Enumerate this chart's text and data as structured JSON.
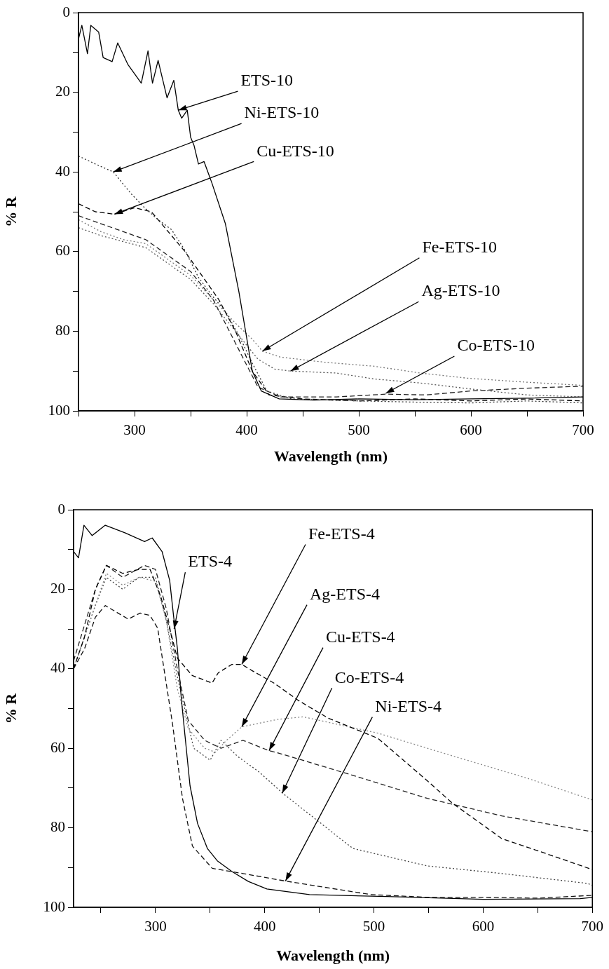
{
  "chart_data": [
    {
      "type": "line",
      "xlabel": "Wavelength (nm)",
      "ylabel": "% R",
      "xlim": [
        250,
        700
      ],
      "ylim": [
        100,
        0
      ],
      "xticks": [
        {
          "value": 250,
          "label": null
        },
        300,
        {
          "value": 350,
          "label": null
        },
        400,
        {
          "value": 450,
          "label": null
        },
        500,
        {
          "value": 550,
          "label": null
        },
        600,
        {
          "value": 650,
          "label": null
        },
        700
      ],
      "yticks": [
        0,
        {
          "value": 10,
          "label": null
        },
        20,
        {
          "value": 30,
          "label": null
        },
        40,
        {
          "value": 50,
          "label": null
        },
        60,
        {
          "value": 70,
          "label": null
        },
        80,
        {
          "value": 90,
          "label": null
        },
        100
      ],
      "grid": false,
      "legend": false,
      "marker": "none",
      "series": [
        {
          "color": "#000000",
          "line_style": "solid",
          "x": [
            250,
            253,
            258,
            261,
            268,
            272,
            280,
            285,
            294,
            306,
            312,
            316,
            321,
            329,
            335,
            339,
            342,
            347,
            350,
            353,
            357,
            362,
            369,
            381,
            393,
            405,
            413,
            429,
            460,
            500,
            550,
            600,
            650,
            700
          ],
          "values": [
            6.6,
            3.2,
            10.3,
            3.2,
            4.9,
            11.3,
            12.3,
            7.6,
            13,
            17.7,
            9.6,
            17.7,
            12,
            21.4,
            17,
            24.5,
            26.5,
            24.5,
            31.3,
            33.3,
            38,
            37.4,
            42.8,
            53,
            70,
            90,
            95,
            97,
            97.3,
            97,
            97.2,
            97,
            96.8,
            96.5
          ]
        },
        {
          "color": "#333333",
          "line_style": "dotted",
          "x": [
            250,
            265,
            281,
            297,
            309,
            321,
            333,
            345,
            357,
            369,
            381,
            393,
            405,
            418,
            440,
            500,
            550,
            600,
            650,
            700
          ],
          "values": [
            36,
            38,
            40,
            45.5,
            49,
            52,
            54.5,
            59.7,
            66.5,
            71,
            75,
            81,
            88,
            95,
            97,
            97.5,
            97.8,
            98,
            97.5,
            98
          ]
        },
        {
          "color": "#000000",
          "line_style": "dashed",
          "x": [
            250,
            265,
            282,
            300,
            315,
            330,
            345,
            360,
            375,
            390,
            405,
            420,
            450,
            500,
            550,
            600,
            650,
            700
          ],
          "values": [
            48,
            50,
            50.6,
            49,
            50,
            55,
            60,
            66,
            72,
            80,
            90,
            96,
            97,
            97.5,
            97,
            97.5,
            97,
            97.5
          ]
        },
        {
          "color": "#777777",
          "line_style": "dotted",
          "x": [
            250,
            270,
            290,
            310,
            330,
            350,
            370,
            390,
            405,
            414,
            430,
            470,
            514,
            555,
            597,
            650,
            700
          ],
          "values": [
            52,
            55,
            57,
            58,
            62,
            66,
            72,
            78,
            82,
            85,
            86.5,
            87.8,
            88.8,
            90.5,
            91.8,
            92.8,
            93.6
          ]
        },
        {
          "color": "#555555",
          "line_style": "dotted",
          "x": [
            250,
            270,
            290,
            310,
            330,
            350,
            370,
            390,
            410,
            425,
            439,
            480,
            514,
            555,
            600,
            650,
            700
          ],
          "values": [
            54,
            56,
            57.5,
            59,
            63,
            67,
            73,
            80,
            87,
            89.5,
            90,
            90.5,
            92,
            93,
            94.5,
            96,
            96.5
          ]
        },
        {
          "color": "#222222",
          "line_style": "dashed",
          "x": [
            250,
            270,
            290,
            310,
            330,
            350,
            370,
            390,
            410,
            430,
            480,
            524,
            560,
            600,
            650,
            700
          ],
          "values": [
            51,
            53,
            55,
            57,
            61,
            65,
            72,
            83,
            94,
            96.5,
            96.5,
            95.8,
            96,
            95,
            94.3,
            93.8
          ]
        }
      ],
      "annotations": [
        {
          "text": "ETS-10",
          "x": 339,
          "y": 24.5
        },
        {
          "text": "Ni-ETS-10",
          "x": 281,
          "y": 40
        },
        {
          "text": "Cu-ETS-10",
          "x": 282,
          "y": 50.6
        },
        {
          "text": "Fe-ETS-10",
          "x": 414,
          "y": 85
        },
        {
          "text": "Ag-ETS-10",
          "x": 439,
          "y": 90
        },
        {
          "text": "Co-ETS-10",
          "x": 524,
          "y": 95.6
        }
      ]
    },
    {
      "type": "line",
      "xlabel": "Wavelength (nm)",
      "ylabel": "% R",
      "xlim": [
        225,
        700
      ],
      "ylim": [
        100,
        0
      ],
      "xticks": [
        {
          "value": 250,
          "label": null
        },
        300,
        {
          "value": 350,
          "label": null
        },
        400,
        {
          "value": 450,
          "label": null
        },
        500,
        {
          "value": 550,
          "label": null
        },
        600,
        {
          "value": 650,
          "label": null
        },
        700
      ],
      "yticks": [
        0,
        {
          "value": 10,
          "label": null
        },
        20,
        {
          "value": 30,
          "label": null
        },
        40,
        {
          "value": 50,
          "label": null
        },
        60,
        {
          "value": 70,
          "label": null
        },
        80,
        {
          "value": 90,
          "label": null
        },
        100
      ],
      "grid": false,
      "legend": false,
      "marker": "none",
      "series": [
        {
          "color": "#000000",
          "line_style": "solid",
          "x": [
            225,
            229.5,
            234.5,
            242,
            254,
            272,
            290,
            297,
            306,
            313,
            316.5,
            320,
            323.6,
            327,
            331.6,
            338.5,
            347.5,
            356.6,
            370,
            385,
            402,
            441,
            512,
            600,
            689,
            700
          ],
          "values": [
            10.5,
            12.1,
            3.9,
            6.5,
            3.9,
            5.8,
            8,
            7.1,
            10.5,
            17.8,
            26.6,
            34.8,
            47.4,
            56.8,
            69.4,
            78.9,
            85.2,
            88.3,
            91,
            93.5,
            95.4,
            96.8,
            97.3,
            98,
            97.8,
            97.5
          ]
        },
        {
          "color": "#000000",
          "line_style": "dashed",
          "x": [
            225,
            235,
            245,
            255,
            270,
            285,
            295,
            305,
            315,
            320,
            333.6,
            351.8,
            357.5,
            370,
            379,
            388,
            408.5,
            431,
            458,
            503.7,
            549,
            571.8,
            617,
            663,
            696.6,
            700
          ],
          "values": [
            40,
            32,
            20,
            14,
            16,
            15,
            15,
            22,
            32,
            37.3,
            41.7,
            43.6,
            41,
            38.9,
            38.9,
            40.4,
            43.6,
            48,
            52.4,
            57.5,
            68.2,
            73.8,
            82.7,
            87,
            90.2,
            90.5
          ]
        },
        {
          "color": "#888888",
          "line_style": "dotted",
          "x": [
            225,
            240,
            255,
            270,
            285,
            300,
            310,
            320,
            330,
            345,
            355,
            365,
            379,
            412.6,
            435.3,
            503.7,
            571.8,
            640,
            695.8,
            700
          ],
          "values": [
            40,
            28,
            16,
            19,
            17,
            18,
            28,
            45,
            55,
            60,
            61,
            58,
            54.6,
            52.7,
            52.1,
            56.2,
            61.9,
            67.5,
            72.6,
            73
          ]
        },
        {
          "color": "#222222",
          "line_style": "dashed",
          "x": [
            225,
            245,
            255,
            270,
            290,
            300,
            310,
            320,
            330,
            345,
            360,
            380,
            404,
            412.6,
            480.7,
            549,
            617,
            695.8,
            700
          ],
          "values": [
            38,
            20,
            14,
            17,
            14,
            15,
            25,
            40,
            53,
            58,
            60,
            58,
            60.6,
            61.2,
            66.8,
            72.6,
            77,
            80.8,
            81
          ]
        },
        {
          "color": "#444444",
          "line_style": "dotted",
          "x": [
            225,
            245,
            255,
            270,
            285,
            300,
            310,
            320,
            335,
            350,
            360,
            375,
            395,
            416.4,
            480.7,
            549,
            617,
            695.8,
            700
          ],
          "values": [
            40,
            24,
            17,
            20,
            17,
            17,
            28,
            42,
            60,
            63,
            58,
            62,
            66,
            71.3,
            85.2,
            89.6,
            91.5,
            94,
            94.5
          ]
        },
        {
          "color": "#111111",
          "line_style": "dashed",
          "x": [
            225,
            235,
            245,
            254,
            275,
            286,
            295,
            302,
            315.5,
            324.7,
            333.8,
            352,
            380,
            419,
            497,
            550,
            600,
            650,
            700
          ],
          "values": [
            40,
            35,
            27,
            24.1,
            27.5,
            26,
            26.6,
            29.8,
            53.7,
            72.6,
            84.6,
            90.2,
            91.5,
            93.4,
            96.8,
            97.5,
            97.5,
            97.7,
            97
          ]
        }
      ],
      "annotations": [
        {
          "text": "ETS-4",
          "x": 317,
          "y": 30
        },
        {
          "text": "Fe-ETS-4",
          "x": 379,
          "y": 38.9
        },
        {
          "text": "Ag-ETS-4",
          "x": 379,
          "y": 54.6
        },
        {
          "text": "Cu-ETS-4",
          "x": 404,
          "y": 60.6
        },
        {
          "text": "Co-ETS-4",
          "x": 416,
          "y": 71.3
        },
        {
          "text": "Ni-ETS-4",
          "x": 419,
          "y": 93.4
        }
      ]
    }
  ]
}
